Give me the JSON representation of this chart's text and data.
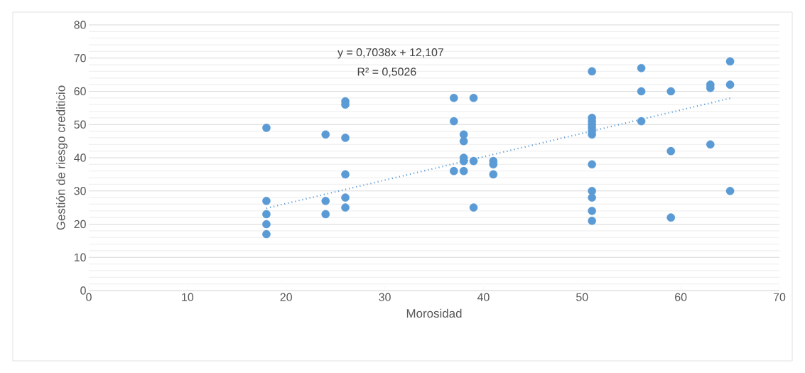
{
  "chart_data": {
    "type": "scatter",
    "xlabel": "Morosidad",
    "ylabel": "Gestión de riesgo crediticio",
    "xlim": [
      0,
      70
    ],
    "ylim": [
      0,
      80
    ],
    "xticks": [
      0,
      10,
      20,
      30,
      40,
      50,
      60,
      70
    ],
    "yticks": [
      0,
      10,
      20,
      30,
      40,
      50,
      60,
      70,
      80
    ],
    "grid": "y",
    "marker": "circle",
    "series": [
      {
        "color": "#5b9bd5",
        "x": [
          18,
          18,
          18,
          18,
          18,
          24,
          24,
          24,
          26,
          26,
          26,
          26,
          26,
          26,
          37,
          37,
          37,
          38,
          38,
          38,
          38,
          38,
          39,
          39,
          39,
          41,
          41,
          41,
          51,
          51,
          51,
          51,
          51,
          51,
          51,
          51,
          51,
          51,
          51,
          51,
          56,
          56,
          56,
          59,
          59,
          59,
          63,
          63,
          63,
          65,
          65,
          65
        ],
        "values": [
          49,
          27,
          23,
          20,
          17,
          47,
          27,
          23,
          57,
          56,
          46,
          35,
          28,
          25,
          58,
          51,
          36,
          47,
          45,
          40,
          39,
          36,
          58,
          39,
          25,
          39,
          38,
          35,
          66,
          52,
          51,
          50,
          49,
          48,
          47,
          38,
          30,
          28,
          24,
          21,
          67,
          60,
          51,
          60,
          42,
          22,
          62,
          61,
          44,
          69,
          62,
          30
        ]
      },
      {
        "color": "#5b9bd5",
        "type": "line",
        "line_style": "dotted",
        "marker": "none",
        "x": [
          18,
          65
        ],
        "values": [
          24.8,
          57.9
        ]
      }
    ],
    "annotations": [
      "y = 0,7038x + 12,107",
      "R² = 0,5026"
    ]
  }
}
